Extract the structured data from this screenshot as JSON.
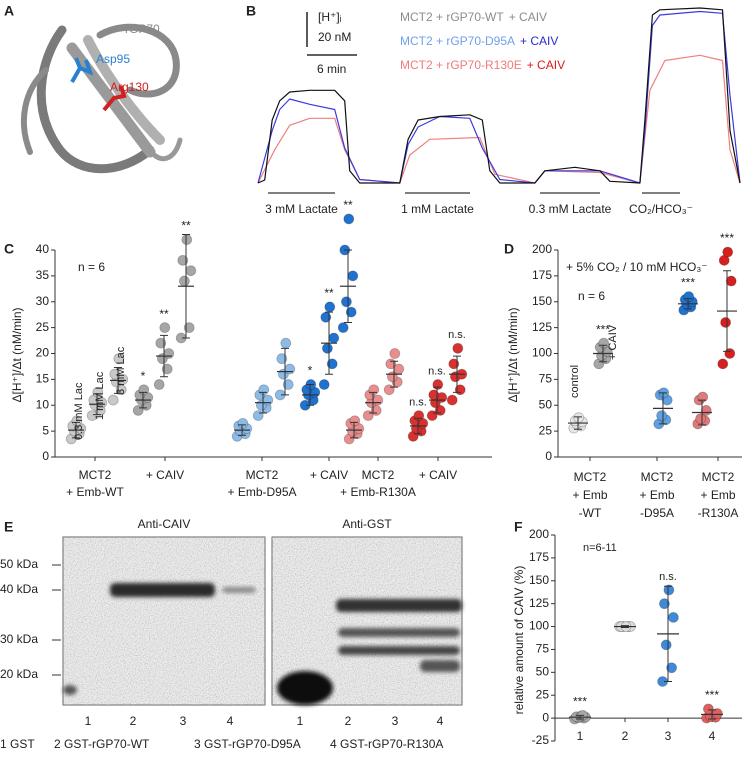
{
  "figure_a": {
    "label": "A",
    "protein": "rGP70",
    "residue_1": "Asp95",
    "residue_2": "Arg130"
  },
  "figure_e": {
    "label": "E",
    "blots": [
      {
        "title": "Anti-CAIV",
        "lanes": [
          "1",
          "2",
          "3",
          "4"
        ]
      },
      {
        "title": "Anti-GST",
        "lanes": [
          "1",
          "2",
          "3",
          "4"
        ]
      }
    ],
    "markers": [
      "50 kDa",
      "40 kDa",
      "30 kDa",
      "20 kDa"
    ],
    "legend": [
      "1 GST",
      "2 GST-rGP70-WT",
      "3 GST-rGP70-D95A",
      "4 GST-rGP70-R130A"
    ]
  },
  "chart_data": [
    {
      "type": "line",
      "label": "B",
      "xlim": [
        0,
        57.8
      ],
      "ylim": [
        0,
        100
      ],
      "scale_bar": {
        "y": 20,
        "y_unit_label": "[H⁺]ᵢ",
        "y_label": "20 nM",
        "x": 6,
        "x_label": "6 min"
      },
      "legend": [
        {
          "label": "MCT2 + rGP70-WT",
          "label_color": "#8c8c8c",
          "suffix": "+ CAIV",
          "suffix_color": "#8c8c8c"
        },
        {
          "label": "MCT2 + rGP70-D95A",
          "label_color": "#6f9ff0",
          "suffix": "+ CAIV",
          "suffix_color": "#2a2ad0"
        },
        {
          "label": "MCT2 + rGP70-R130E",
          "label_color": "#f07a7a",
          "suffix": "+ CAIV",
          "suffix_color": "#e01818"
        }
      ],
      "applications": [
        "3 mM Lactate",
        "1 mM Lactate",
        "0.3 mM Lactate",
        "CO₂/HCO₃⁻"
      ],
      "series": [
        {
          "color": "#ee8080",
          "x": [
            0,
            2.0,
            3.8,
            6.2,
            9.2,
            10.4,
            12.2,
            17.0,
            18.2,
            20.6,
            26.6,
            28.4,
            33.2,
            34.4,
            41.0,
            45.8,
            47.0,
            48.8,
            53.0,
            55.7,
            56.6,
            57.8
          ],
          "values": [
            0,
            19,
            33,
            37,
            37,
            19,
            2,
            0,
            16,
            25,
            26,
            5,
            0,
            7,
            6,
            0,
            53,
            70,
            73,
            70,
            19,
            0
          ]
        },
        {
          "color": "#3a3ae0",
          "x": [
            0,
            1.7,
            2.6,
            3.8,
            6.2,
            9.2,
            10.4,
            12.2,
            17.0,
            18.0,
            19.2,
            21.8,
            25.4,
            26.9,
            29.0,
            33.2,
            34.4,
            41.0,
            45.8,
            46.4,
            47.3,
            48.2,
            53.0,
            55.7,
            56.6,
            57.8
          ],
          "values": [
            0,
            30,
            42,
            48,
            45,
            42,
            20,
            2,
            0,
            22,
            32,
            38,
            37,
            20,
            2,
            0,
            7,
            7,
            0,
            30,
            90,
            96,
            98,
            97,
            50,
            0
          ]
        },
        {
          "color": "#111111",
          "x": [
            0,
            0.8,
            1.7,
            2.6,
            3.8,
            6.2,
            9.2,
            10.4,
            11.0,
            12.2,
            17.0,
            18.0,
            19.2,
            21.8,
            25.4,
            26.9,
            27.8,
            29.0,
            33.2,
            34.4,
            38.0,
            41.0,
            42.2,
            45.8,
            46.4,
            47.3,
            48.2,
            53.0,
            55.7,
            56.6,
            57.8
          ],
          "values": [
            0,
            1.7,
            36,
            47,
            52,
            53,
            53,
            47,
            7,
            0,
            0,
            25,
            36,
            38,
            39,
            36,
            7,
            0,
            0,
            7,
            9,
            7,
            1,
            0,
            36,
            96,
            99,
            100,
            99,
            30,
            0
          ]
        }
      ]
    },
    {
      "type": "dotplot",
      "label": "C",
      "y_label": "Δ[H⁺]/Δt (nM/min)",
      "note": "n = 6",
      "ylim": [
        0,
        40
      ],
      "yticks": [
        0,
        5,
        10,
        15,
        20,
        25,
        30,
        35,
        40
      ],
      "categories": [
        [
          "MCT2",
          "+ Emb-WT"
        ],
        [
          "+ CAIV"
        ],
        [
          "MCT2",
          "+ Emb-D95A"
        ],
        [
          "+ CAIV"
        ],
        [
          "MCT2",
          "+ Emb-R130A"
        ],
        [
          "+ CAIV"
        ]
      ],
      "columns": [
        {
          "color": "#c9c9c9",
          "label": "0.3 mM Lac",
          "values": [
            3.5,
            4.5,
            5,
            5.5,
            6,
            7
          ],
          "mean": 5.2,
          "sd": 1.5
        },
        {
          "color": "#c9c9c9",
          "label": "1 mM Lac",
          "values": [
            8,
            9,
            10,
            10.5,
            11,
            12.5
          ],
          "mean": 10.2,
          "sd": 2
        },
        {
          "color": "#c9c9c9",
          "label": "3 mM Lac",
          "values": [
            11,
            13,
            14.5,
            15,
            16,
            19
          ],
          "mean": 14.8,
          "sd": 2.5
        },
        {
          "color": "#a6a6a6",
          "values": [
            9,
            10,
            11,
            11.5,
            12,
            13
          ],
          "mean": 11,
          "sd": 1.5,
          "annotation": "*"
        },
        {
          "color": "#a6a6a6",
          "values": [
            14,
            17,
            19,
            20,
            22,
            25
          ],
          "mean": 19.5,
          "sd": 4,
          "annotation": "**"
        },
        {
          "color": "#a6a6a6",
          "values": [
            23,
            25,
            34,
            36,
            38,
            42
          ],
          "mean": 33,
          "sd": 10,
          "annotation": "**"
        },
        {
          "color": "#8dbbe8",
          "values": [
            4,
            4.5,
            5,
            5.5,
            6,
            6.5
          ],
          "mean": 5.2,
          "sd": 1
        },
        {
          "color": "#8dbbe8",
          "values": [
            8,
            9.5,
            10,
            11,
            12,
            13
          ],
          "mean": 10.5,
          "sd": 2
        },
        {
          "color": "#8dbbe8",
          "values": [
            12,
            14,
            16,
            17,
            19,
            22
          ],
          "mean": 16.5,
          "sd": 4.5
        },
        {
          "color": "#1f72d0",
          "values": [
            10,
            11,
            12,
            12.5,
            13,
            14
          ],
          "mean": 12,
          "sd": 2,
          "annotation": "*"
        },
        {
          "color": "#1f72d0",
          "values": [
            14,
            18,
            21,
            23,
            27,
            29
          ],
          "mean": 22,
          "sd": 6,
          "annotation": "**"
        },
        {
          "color": "#1f72d0",
          "values": [
            25,
            28,
            30,
            35,
            40,
            46
          ],
          "mean": 33,
          "sd": 7,
          "annotation": "**"
        },
        {
          "color": "#e88e8e",
          "values": [
            3.5,
            4.5,
            5,
            5.5,
            6.5,
            7
          ],
          "mean": 5.2,
          "sd": 1.5
        },
        {
          "color": "#e88e8e",
          "values": [
            8,
            9,
            10.5,
            11,
            12,
            13
          ],
          "mean": 10.5,
          "sd": 2
        },
        {
          "color": "#e88e8e",
          "values": [
            13,
            14.5,
            15.5,
            17,
            18,
            20
          ],
          "mean": 16,
          "sd": 2.5
        },
        {
          "color": "#d93030",
          "values": [
            4,
            5,
            5.5,
            6.5,
            7,
            8
          ],
          "mean": 6,
          "sd": 1.5,
          "annotation": "n.s."
        },
        {
          "color": "#d93030",
          "values": [
            8,
            9,
            10.5,
            11.5,
            12,
            14
          ],
          "mean": 11,
          "sd": 2.5,
          "annotation": "n.s."
        },
        {
          "color": "#d93030",
          "values": [
            11,
            13,
            15.5,
            16,
            18,
            21
          ],
          "mean": 16,
          "sd": 3.5,
          "annotation": "n.s."
        }
      ]
    },
    {
      "type": "dotplot",
      "label": "D",
      "y_label": "Δ[H⁺]/Δt (nM/min)",
      "note": "n = 6",
      "condition": "+ 5% CO₂ / 10 mM HCO₃⁻",
      "ylim": [
        0,
        200
      ],
      "yticks": [
        0,
        25,
        50,
        75,
        100,
        125,
        150,
        175,
        200
      ],
      "categories": [
        [
          "MCT2",
          "+ Emb",
          "-WT"
        ],
        [
          "MCT2",
          "+ Emb",
          "-D95A"
        ],
        [
          "MCT2",
          "+ Emb",
          "-R130A"
        ]
      ],
      "columns": [
        {
          "color": "#e6e6e6",
          "label": "control",
          "values": [
            28,
            30,
            32,
            34,
            35,
            38
          ],
          "mean": 32.8,
          "sd": 6
        },
        {
          "color": "#a6a6a6",
          "label": "+ CAIV",
          "values": [
            90,
            95,
            98,
            102,
            106,
            110
          ],
          "mean": 100,
          "sd": 8,
          "annotation": "***"
        },
        {
          "color": "#5fa0e0",
          "values": [
            32,
            36,
            40,
            55,
            60,
            62
          ],
          "mean": 47,
          "sd": 15
        },
        {
          "color": "#1f72d0",
          "values": [
            142,
            145,
            148,
            150,
            152,
            155
          ],
          "mean": 148,
          "sd": 5,
          "annotation": "***"
        },
        {
          "color": "#e07a7a",
          "values": [
            32,
            35,
            37,
            45,
            55,
            58
          ],
          "mean": 43,
          "sd": 12
        },
        {
          "color": "#d62020",
          "values": [
            90,
            100,
            130,
            170,
            190,
            198
          ],
          "mean": 141,
          "sd": 39,
          "annotation": "***"
        }
      ]
    },
    {
      "type": "dotplot",
      "label": "F",
      "y_label": "relative amount of CAIV (%)",
      "note": "n=6-11",
      "ylim": [
        -25,
        200
      ],
      "yticks": [
        -25,
        0,
        25,
        50,
        75,
        100,
        125,
        150,
        175,
        200
      ],
      "categories": [
        [
          "1"
        ],
        [
          "2"
        ],
        [
          "3"
        ],
        [
          "4"
        ]
      ],
      "columns": [
        {
          "color": "#a6a6a6",
          "values": [
            -1,
            0,
            0.5,
            1,
            1.5,
            2,
            3
          ],
          "mean": 1,
          "sd": 2,
          "annotation": "***"
        },
        {
          "color": "#dcdcdc",
          "values": [
            100,
            100,
            100,
            100,
            100,
            100
          ],
          "mean": 100,
          "sd": 1
        },
        {
          "color": "#3f8ad8",
          "values": [
            40,
            55,
            80,
            110,
            125,
            140
          ],
          "mean": 92,
          "sd": 52,
          "annotation": "n.s."
        },
        {
          "color": "#e06060",
          "values": [
            0,
            1,
            2,
            5,
            10
          ],
          "mean": 4,
          "sd": 5,
          "annotation": "***"
        }
      ]
    }
  ]
}
